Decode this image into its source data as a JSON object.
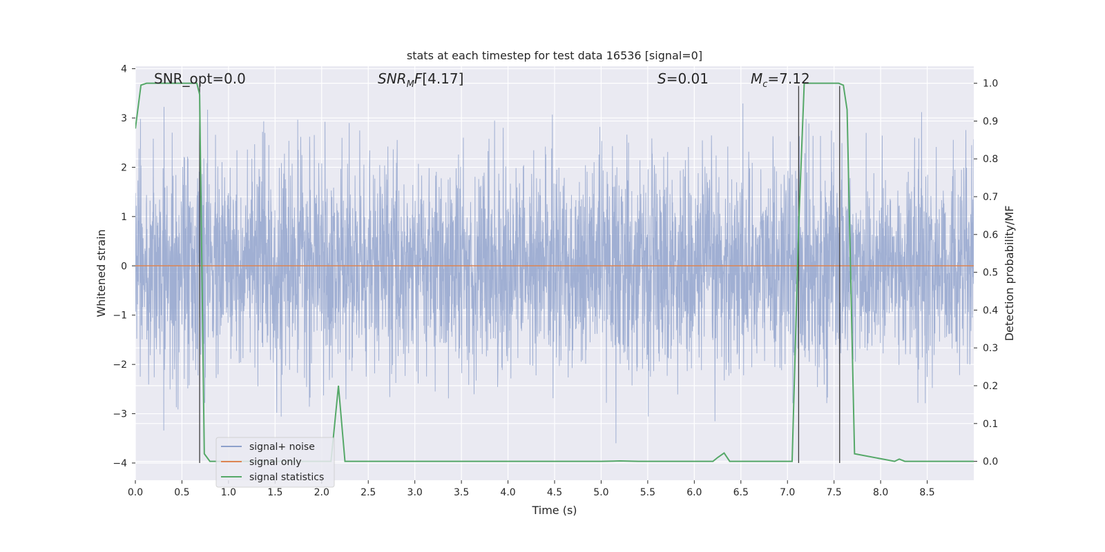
{
  "chart_data": {
    "type": "line",
    "title": "stats at each timestep for test data 16536 [signal=0]",
    "xlabel": "Time (s)",
    "ylabel_left": "Whitened strain",
    "ylabel_right": "Detection probability/MF",
    "xlim": [
      0.0,
      9.0
    ],
    "ylim_left": [
      -4.35,
      4.05
    ],
    "ylim_right": [
      -0.05,
      1.045
    ],
    "x_ticks": [
      0.0,
      0.5,
      1.0,
      1.5,
      2.0,
      2.5,
      3.0,
      3.5,
      4.0,
      4.5,
      5.0,
      5.5,
      6.0,
      6.5,
      7.0,
      7.5,
      8.0,
      8.5
    ],
    "x_tick_labels": [
      "0.0",
      "0.5",
      "1.0",
      "1.5",
      "2.0",
      "2.5",
      "3.0",
      "3.5",
      "4.0",
      "4.5",
      "5.0",
      "5.5",
      "6.0",
      "6.5",
      "7.0",
      "7.5",
      "8.0",
      "8.5"
    ],
    "y_left_ticks": [
      4,
      3,
      2,
      1,
      0,
      -1,
      -2,
      -3,
      -4
    ],
    "y_left_tick_labels": [
      "4",
      "3",
      "2",
      "1",
      "0",
      "−1",
      "−2",
      "−3",
      "−4"
    ],
    "y_right_ticks": [
      1.0,
      0.9,
      0.8,
      0.7,
      0.6,
      0.5,
      0.4,
      0.3,
      0.2,
      0.1,
      0.0
    ],
    "y_right_tick_labels": [
      "1.0",
      "0.9",
      "0.8",
      "0.7",
      "0.6",
      "0.5",
      "0.4",
      "0.3",
      "0.2",
      "0.1",
      "0.0"
    ],
    "grid": true,
    "legend_position": "lower-left",
    "annotations": {
      "snr_opt": "SNR_opt=0.0",
      "snr_mf": "[4.17]",
      "s": "=0.01",
      "mc": "=7.12"
    },
    "series": [
      {
        "name": "signal+ noise",
        "axis": "left",
        "color": "#8da0cb",
        "note": "whitened strain noise, approx. gaussian, amplitude within [-3.6, 3.65]",
        "envelope_max": 3.65,
        "envelope_min": -3.6
      },
      {
        "name": "signal only",
        "axis": "left",
        "color": "#dd8452",
        "x": [
          0.0,
          9.0
        ],
        "y": [
          0.0,
          0.0
        ]
      },
      {
        "name": "signal statistics",
        "axis": "right",
        "color": "#55a868",
        "x": [
          0.0,
          0.06,
          0.12,
          0.6,
          0.66,
          0.69,
          0.74,
          0.8,
          0.9,
          2.1,
          2.18,
          2.25,
          2.32,
          5.0,
          5.2,
          5.4,
          6.2,
          6.25,
          6.32,
          6.38,
          7.05,
          7.12,
          7.18,
          7.55,
          7.6,
          7.64,
          7.72,
          8.15,
          8.2,
          8.26,
          8.55,
          9.0
        ],
        "y": [
          0.88,
          0.995,
          1.0,
          1.0,
          1.0,
          0.97,
          0.02,
          0.0,
          0.0,
          0.0,
          0.2,
          0.0,
          0.0,
          0.0,
          0.001,
          0.0,
          0.0,
          0.01,
          0.022,
          0.0,
          0.0,
          0.62,
          1.0,
          1.0,
          0.995,
          0.93,
          0.02,
          0.0,
          0.006,
          0.0,
          0.0,
          0.0
        ]
      }
    ],
    "vertical_markers_x": [
      0.69,
      7.12,
      7.56
    ]
  }
}
